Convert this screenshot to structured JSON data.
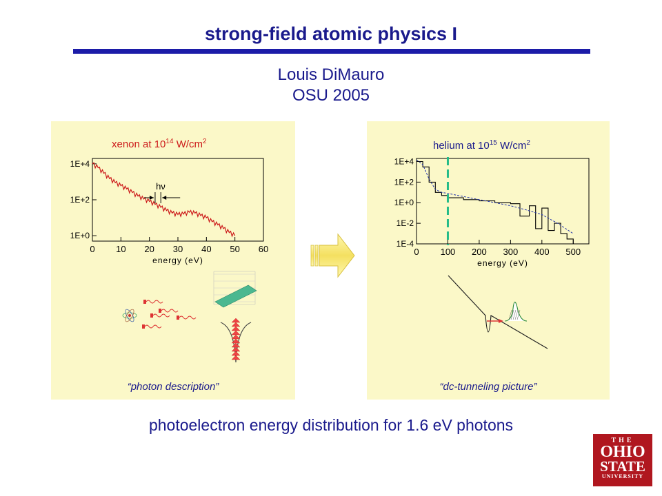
{
  "header": {
    "title": "strong-field atomic physics I",
    "author": "Louis DiMauro",
    "affiliation": "OSU 2005"
  },
  "left_panel": {
    "title_prefix": "xenon at 10",
    "title_exp": "14",
    "title_unit": " W/cm",
    "title_unit_exp": "2",
    "caption": "“photon description”",
    "annotation": "hν"
  },
  "right_panel": {
    "title_prefix": "helium at 10",
    "title_exp": "15",
    "title_unit": " W/cm",
    "title_unit_exp": "2",
    "caption": "“dc-tunneling picture”"
  },
  "footer": {
    "text": "photoelectron energy distribution for 1.6 eV photons"
  },
  "logo": {
    "line1": "THE",
    "line2": "OHIO",
    "line3": "STATE",
    "line4": "UNIVERSITY"
  },
  "colors": {
    "title": "#1a1a8c",
    "accent_bar": "#1c1ca8",
    "panel_bg": "#fbf8c8",
    "xenon_curve": "#cc1a1a",
    "helium_line": "#22bb88",
    "logo_bg": "#b0171f"
  },
  "chart_data": [
    {
      "type": "line",
      "xlabel": "energy (eV)",
      "xlim": [
        0,
        60
      ],
      "x_ticks": [
        "0",
        "10",
        "20",
        "30",
        "40",
        "50",
        "60"
      ],
      "y_scale": "log",
      "y_ticks": [
        "1E+0",
        "1E+2",
        "1E+4"
      ],
      "ylim": [
        0.5,
        20000
      ],
      "series": [
        {
          "x": [
            0,
            2,
            4,
            6,
            8,
            10,
            12,
            14,
            16,
            18,
            20,
            22,
            24,
            26,
            28,
            30,
            32,
            34,
            36,
            38,
            40,
            42,
            44,
            46,
            48,
            50
          ],
          "y": [
            10000,
            6000,
            3000,
            1500,
            900,
            600,
            400,
            250,
            160,
            110,
            80,
            55,
            38,
            25,
            18,
            15,
            16,
            20,
            18,
            13,
            10,
            6,
            4,
            2.5,
            1.5,
            1
          ]
        }
      ]
    },
    {
      "type": "line",
      "xlabel": "energy (eV)",
      "xlim": [
        0,
        550
      ],
      "x_ticks": [
        "0",
        "100",
        "200",
        "300",
        "400",
        "500"
      ],
      "y_scale": "log",
      "y_ticks": [
        "1E-4",
        "1E-2",
        "1E+0",
        "1E+2",
        "1E+4"
      ],
      "ylim": [
        0.0001,
        20000
      ],
      "series": [
        {
          "x": [
            0,
            20,
            40,
            60,
            80,
            100,
            150,
            200,
            250,
            300,
            330,
            360,
            380,
            400,
            420,
            440,
            460,
            480,
            500
          ],
          "y": [
            10000,
            3000,
            100,
            10,
            5,
            3,
            2,
            1.5,
            1,
            0.8,
            0.05,
            0.5,
            0.003,
            0.3,
            0.002,
            0.01,
            0.001,
            0.0003,
            0.0001
          ]
        },
        {
          "x": [
            0,
            20,
            40,
            60,
            80,
            100,
            150,
            200,
            250,
            300,
            350,
            400,
            450,
            500
          ],
          "y": [
            15000,
            5000,
            200,
            20,
            10,
            8,
            4,
            2,
            1,
            0.5,
            0.2,
            0.07,
            0.01,
            0.001
          ]
        }
      ]
    }
  ]
}
